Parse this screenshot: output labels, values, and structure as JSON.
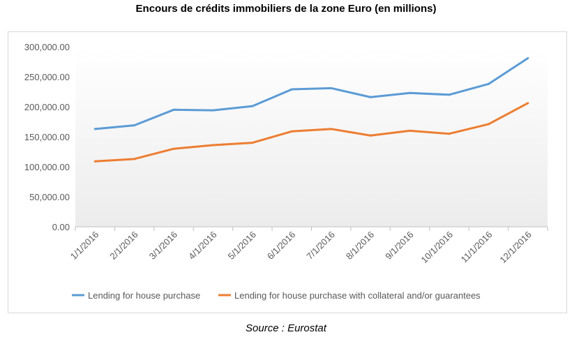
{
  "chart_data": {
    "type": "line",
    "title": "Encours de crédits immobiliers de la zone Euro (en millions)",
    "xlabel": "",
    "ylabel": "",
    "categories": [
      "1/1/2016",
      "2/1/2016",
      "3/1/2016",
      "4/1/2016",
      "5/1/2016",
      "6/1/2016",
      "7/1/2016",
      "8/1/2016",
      "9/1/2016",
      "10/1/2016",
      "11/1/2016",
      "12/1/2016"
    ],
    "ylim": [
      0,
      300000
    ],
    "yticks": [
      "0.00",
      "50,000.00",
      "100,000.00",
      "150,000.00",
      "200,000.00",
      "250,000.00",
      "300,000.00"
    ],
    "grid": false,
    "legend_position": "bottom",
    "series": [
      {
        "name": "Lending for house purchase",
        "color": "#5b9bd5",
        "values": [
          163000,
          169000,
          195000,
          194000,
          201000,
          229000,
          231000,
          216000,
          223000,
          220000,
          238000,
          281000
        ]
      },
      {
        "name": "Lending for house purchase with collateral and/or guarantees",
        "color": "#ed7d31",
        "values": [
          109000,
          113000,
          130000,
          136000,
          140000,
          159000,
          163000,
          152000,
          160000,
          155000,
          171000,
          206000
        ]
      }
    ]
  },
  "source": "Source : Eurostat"
}
